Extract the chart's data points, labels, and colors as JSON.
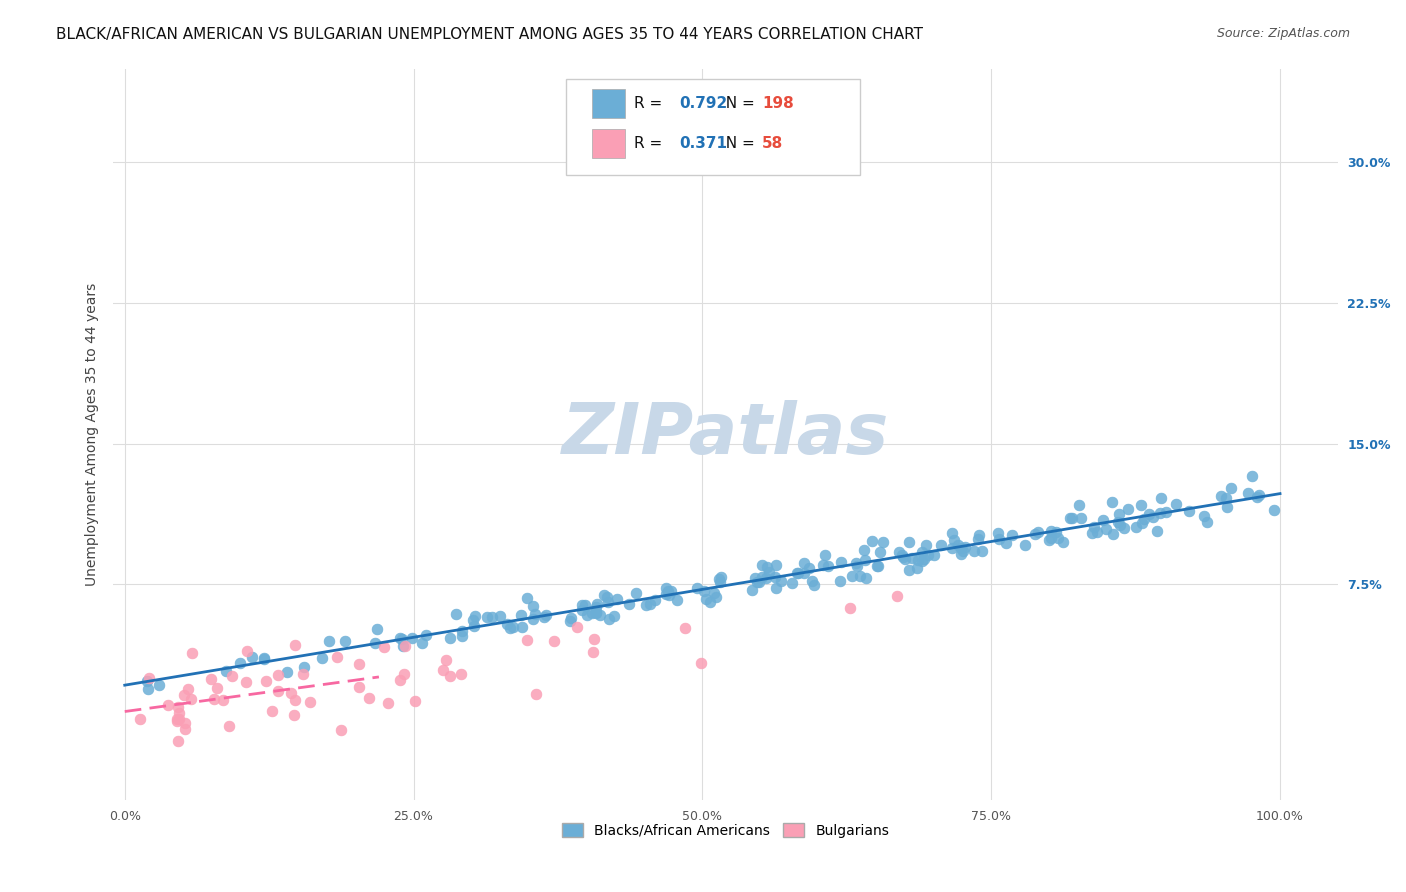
{
  "title": "BLACK/AFRICAN AMERICAN VS BULGARIAN UNEMPLOYMENT AMONG AGES 35 TO 44 YEARS CORRELATION CHART",
  "source": "Source: ZipAtlas.com",
  "ylabel": "Unemployment Among Ages 35 to 44 years",
  "xlabel_ticks": [
    "0.0%",
    "100.0%"
  ],
  "ytick_labels": [
    "7.5%",
    "15.0%",
    "22.5%",
    "30.0%"
  ],
  "ytick_values": [
    0.075,
    0.15,
    0.225,
    0.3
  ],
  "xlim": [
    -0.01,
    1.05
  ],
  "ylim": [
    -0.04,
    0.35
  ],
  "blue_R": 0.792,
  "blue_N": 198,
  "pink_R": 0.371,
  "pink_N": 58,
  "blue_color": "#6baed6",
  "pink_color": "#fa9fb5",
  "blue_line_color": "#2171b5",
  "pink_line_color": "#f768a1",
  "legend_R_color": "#2171b5",
  "legend_N_color": "#e74c3c",
  "watermark": "ZIPatlas",
  "watermark_color": "#c8d8e8",
  "background_color": "#ffffff",
  "grid_color": "#dddddd",
  "title_fontsize": 11,
  "source_fontsize": 9,
  "axis_label_fontsize": 10,
  "tick_fontsize": 9,
  "legend_fontsize": 11
}
